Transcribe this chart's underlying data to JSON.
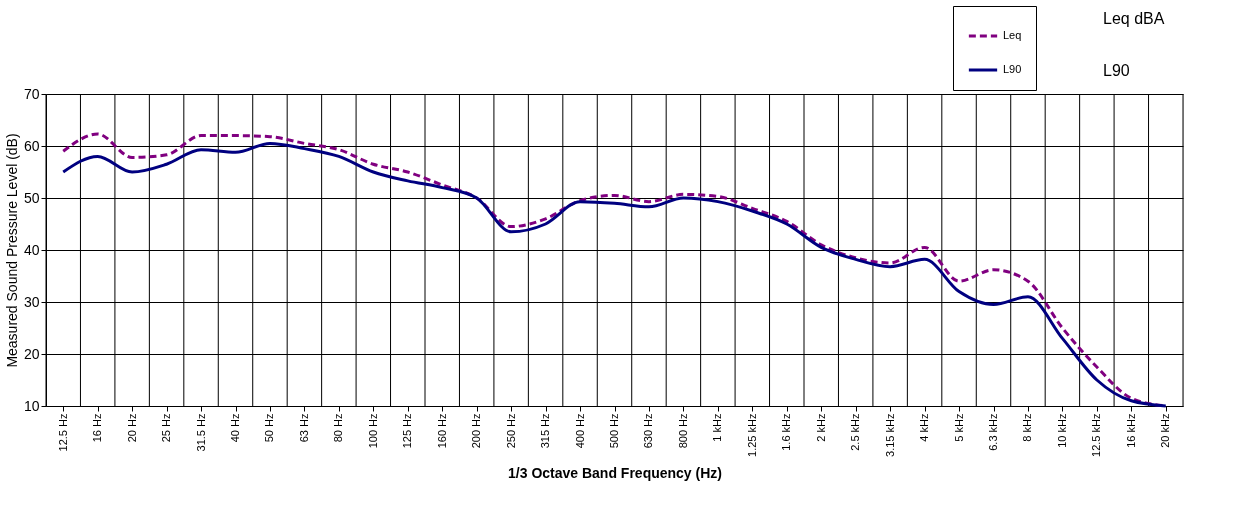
{
  "chart_data": {
    "type": "line",
    "xlabel": "1/3 Octave Band Frequency (Hz)",
    "ylabel": "Measured Sound Pressure Level (dB)",
    "categories": [
      "12.5 Hz",
      "16 Hz",
      "20 Hz",
      "25 Hz",
      "31.5 Hz",
      "40 Hz",
      "50 Hz",
      "63 Hz",
      "80 Hz",
      "100 Hz",
      "125 Hz",
      "160 Hz",
      "200 Hz",
      "250 Hz",
      "315 Hz",
      "400 Hz",
      "500 Hz",
      "630 Hz",
      "800 Hz",
      "1 kHz",
      "1.25 kHz",
      "1.6 kHz",
      "2 kHz",
      "2.5 kHz",
      "3.15 kHz",
      "4 kHz",
      "5 kHz",
      "6.3 kHz",
      "8 kHz",
      "10 kHz",
      "12.5 kHz",
      "16 kHz",
      "20 kHz"
    ],
    "series": [
      {
        "name": "Leq",
        "color": "#800080",
        "line_style": "dashed",
        "values": [
          59,
          62.3,
          57.8,
          58.3,
          62,
          62,
          61.8,
          60.5,
          59.3,
          56.5,
          55,
          52.5,
          50,
          44.5,
          46,
          49.5,
          50.5,
          49.3,
          50.7,
          50.3,
          48,
          45.5,
          41,
          38.5,
          37.5,
          40.5,
          34,
          36.2,
          34,
          25,
          17.5,
          11.5,
          10
        ]
      },
      {
        "name": "L90",
        "color": "#000080",
        "line_style": "solid",
        "values": [
          55,
          58,
          55,
          56.5,
          59.3,
          58.8,
          60.5,
          59.5,
          58,
          55,
          53.3,
          52,
          50,
          43.5,
          45,
          49.3,
          49,
          48.3,
          50,
          49.3,
          47.5,
          45,
          40.5,
          38.2,
          36.8,
          38.2,
          32,
          29.5,
          31,
          23,
          15,
          11,
          10
        ]
      }
    ],
    "ylim": [
      10,
      70
    ],
    "yticks": [
      10,
      20,
      30,
      40,
      50,
      60,
      70
    ],
    "grid": true,
    "legend": "top right",
    "marker": "none",
    "annotations": [
      "Leq  dBA",
      "L90"
    ]
  }
}
